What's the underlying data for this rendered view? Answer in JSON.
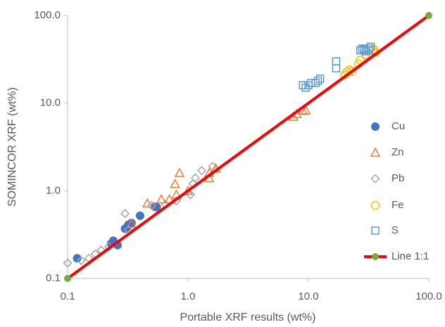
{
  "chart_data": {
    "type": "scatter",
    "x_label": "Portable XRF results (wt%)",
    "y_label": "SOMINCOR XRF (wt%)",
    "xlog": true,
    "ylog": true,
    "xlim": [
      0.1,
      100
    ],
    "ylim": [
      0.1,
      100
    ],
    "xticks": [
      0.1,
      {
        "value": 1,
        "label": "1.0"
      },
      {
        "value": 10,
        "label": "10.0"
      },
      {
        "value": 100,
        "label": "100.0"
      }
    ],
    "yticks": [
      0.1,
      {
        "value": 1,
        "label": "1.0"
      },
      {
        "value": 10,
        "label": "10.0"
      },
      {
        "value": 100,
        "label": "100.0"
      }
    ],
    "grid": false,
    "legend": "right",
    "series": [
      {
        "name": "Cu",
        "color": "#4472c4",
        "marker": "circle-filled",
        "x": [
          0.12,
          0.24,
          0.23,
          0.26,
          0.3,
          0.31,
          0.32,
          0.34,
          0.4,
          0.53,
          0.55
        ],
        "values": [
          0.17,
          0.27,
          0.25,
          0.24,
          0.37,
          0.38,
          0.41,
          0.43,
          0.52,
          0.66,
          0.65
        ]
      },
      {
        "name": "Zn",
        "color": "#ed7d31",
        "marker": "triangle",
        "x": [
          0.34,
          0.46,
          0.6,
          0.7,
          0.78,
          0.85,
          0.8,
          1.0,
          1.5,
          1.5,
          1.7,
          7.5,
          8,
          9,
          9.5
        ],
        "values": [
          0.42,
          0.72,
          0.8,
          0.8,
          1.2,
          1.6,
          0.9,
          1.0,
          1.4,
          1.6,
          1.8,
          7.0,
          7.5,
          8.2,
          8.3
        ]
      },
      {
        "name": "Pb",
        "color": "#a5a5a5",
        "marker": "diamond",
        "x": [
          0.1,
          0.13,
          0.15,
          0.17,
          0.19,
          0.22,
          0.3,
          0.32,
          0.5,
          0.65,
          0.8,
          1.05,
          1.1,
          1.15,
          1.3,
          1.6
        ],
        "values": [
          0.15,
          0.16,
          0.17,
          0.19,
          0.21,
          0.23,
          0.55,
          0.36,
          0.68,
          0.7,
          0.77,
          0.9,
          1.2,
          1.4,
          1.7,
          1.9
        ]
      },
      {
        "name": "Fe",
        "color": "#ffc000",
        "marker": "circle",
        "x": [
          20,
          21,
          22,
          23,
          26,
          27,
          30,
          34,
          36,
          35
        ],
        "values": [
          21,
          23,
          24,
          23,
          28,
          31,
          36,
          40,
          38,
          41
        ]
      },
      {
        "name": "S",
        "color": "#5b9bd5",
        "marker": "square",
        "x": [
          9,
          9.5,
          10,
          10.5,
          11.5,
          12,
          12.5,
          17,
          17,
          27,
          28,
          29,
          30,
          32,
          33,
          32
        ],
        "values": [
          16,
          15,
          16,
          17,
          17,
          18,
          19,
          25,
          30,
          40,
          42,
          41,
          39,
          42,
          44,
          40
        ]
      },
      {
        "name": "Line 1:1",
        "color": "#ff0000",
        "marker_color": "#70ad47",
        "marker": "line",
        "x": [
          0.1,
          100
        ],
        "values": [
          0.1,
          100
        ]
      }
    ]
  }
}
